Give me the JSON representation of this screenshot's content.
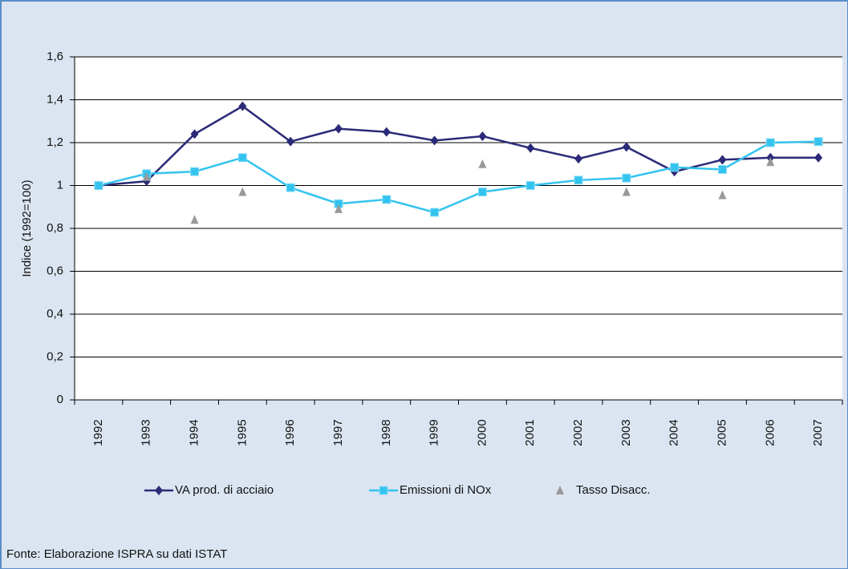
{
  "chart_data": {
    "type": "line",
    "y_label": "Indice (1992=100)",
    "source": "Fonte: Elaborazione ISPRA su dati ISTAT",
    "categories": [
      "1992",
      "1993",
      "1994",
      "1995",
      "1996",
      "1997",
      "1998",
      "1999",
      "2000",
      "2001",
      "2002",
      "2003",
      "2004",
      "2005",
      "2006",
      "2007"
    ],
    "series": [
      {
        "name": "VA prod. di acciaio",
        "color": "#2b2a78",
        "marker": "diamond",
        "line": true,
        "values": [
          1.0,
          1.02,
          1.24,
          1.37,
          1.205,
          1.265,
          1.25,
          1.21,
          1.23,
          1.175,
          1.125,
          1.18,
          1.065,
          1.12,
          1.13,
          1.13
        ]
      },
      {
        "name": "Emissioni di NOx",
        "color": "#33c3ef",
        "marker": "square",
        "line": true,
        "values": [
          1.0,
          1.055,
          1.065,
          1.13,
          0.99,
          0.915,
          0.935,
          0.875,
          0.97,
          1.0,
          1.025,
          1.035,
          1.085,
          1.075,
          1.2,
          1.205
        ]
      },
      {
        "name": "Tasso Disacc.",
        "color": "#999999",
        "marker": "triangle",
        "line": false,
        "values": [
          null,
          1.04,
          0.84,
          0.97,
          null,
          0.89,
          null,
          null,
          1.1,
          null,
          null,
          0.97,
          null,
          0.955,
          1.11,
          null
        ]
      }
    ],
    "ylim": [
      0,
      1.6
    ],
    "yticks": [
      0,
      {
        "value": 0.2,
        "label": "0,2"
      },
      {
        "value": 0.4,
        "label": "0,4"
      },
      {
        "value": 0.6,
        "label": "0,6"
      },
      {
        "value": 0.8,
        "label": "0,8"
      },
      1,
      {
        "value": 1.2,
        "label": "1,2"
      },
      {
        "value": 1.4,
        "label": "1,4"
      },
      {
        "value": 1.6,
        "label": "1,6"
      }
    ],
    "grid": true
  }
}
